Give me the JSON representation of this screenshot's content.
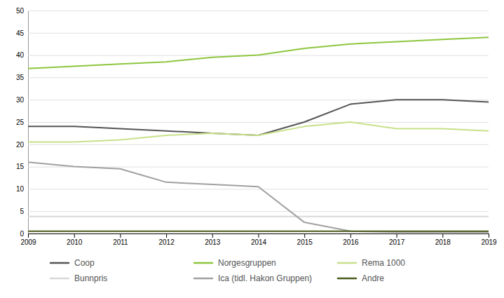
{
  "chart_data": {
    "type": "line",
    "x": [
      2009,
      2010,
      2011,
      2012,
      2013,
      2014,
      2015,
      2016,
      2017,
      2018,
      2019
    ],
    "series": [
      {
        "name": "Coop",
        "color": "#555555",
        "values": [
          24.0,
          24.0,
          23.5,
          23.0,
          22.5,
          22.0,
          25.0,
          29.0,
          30.0,
          30.0,
          29.5
        ]
      },
      {
        "name": "Norgesgruppen",
        "color": "#8dc63f",
        "values": [
          37.0,
          37.5,
          38.0,
          38.5,
          39.5,
          40.0,
          41.5,
          42.5,
          43.0,
          43.5,
          44.0
        ]
      },
      {
        "name": "Rema 1000",
        "color": "#c8e08a",
        "values": [
          20.5,
          20.5,
          21.0,
          22.0,
          22.5,
          22.0,
          24.0,
          25.0,
          23.5,
          23.5,
          23.0
        ]
      },
      {
        "name": "Bunnpris",
        "color": "#d8d8d8",
        "values": [
          3.8,
          3.8,
          3.8,
          3.8,
          3.8,
          3.8,
          3.8,
          3.8,
          3.8,
          3.8,
          3.8
        ]
      },
      {
        "name": "Ica (tidl. Hakon Gruppen)",
        "color": "#a0a0a0",
        "values": [
          16.0,
          15.0,
          14.5,
          11.5,
          11.0,
          10.5,
          2.5,
          0.5,
          0.3,
          0.3,
          0.3
        ]
      },
      {
        "name": "Andre",
        "color": "#4a5a1a",
        "values": [
          0.5,
          0.5,
          0.5,
          0.5,
          0.5,
          0.5,
          0.5,
          0.5,
          0.5,
          0.5,
          0.5
        ]
      }
    ],
    "xlim": [
      2009,
      2019
    ],
    "xticks": [
      2009,
      2010,
      2011,
      2012,
      2013,
      2014,
      2015,
      2016,
      2017,
      2018,
      2019
    ],
    "ylim": [
      0,
      50
    ],
    "yticks": [
      0,
      5,
      10,
      15,
      20,
      25,
      30,
      35,
      40,
      45,
      50
    ],
    "grid": true,
    "legend": "bottom"
  }
}
